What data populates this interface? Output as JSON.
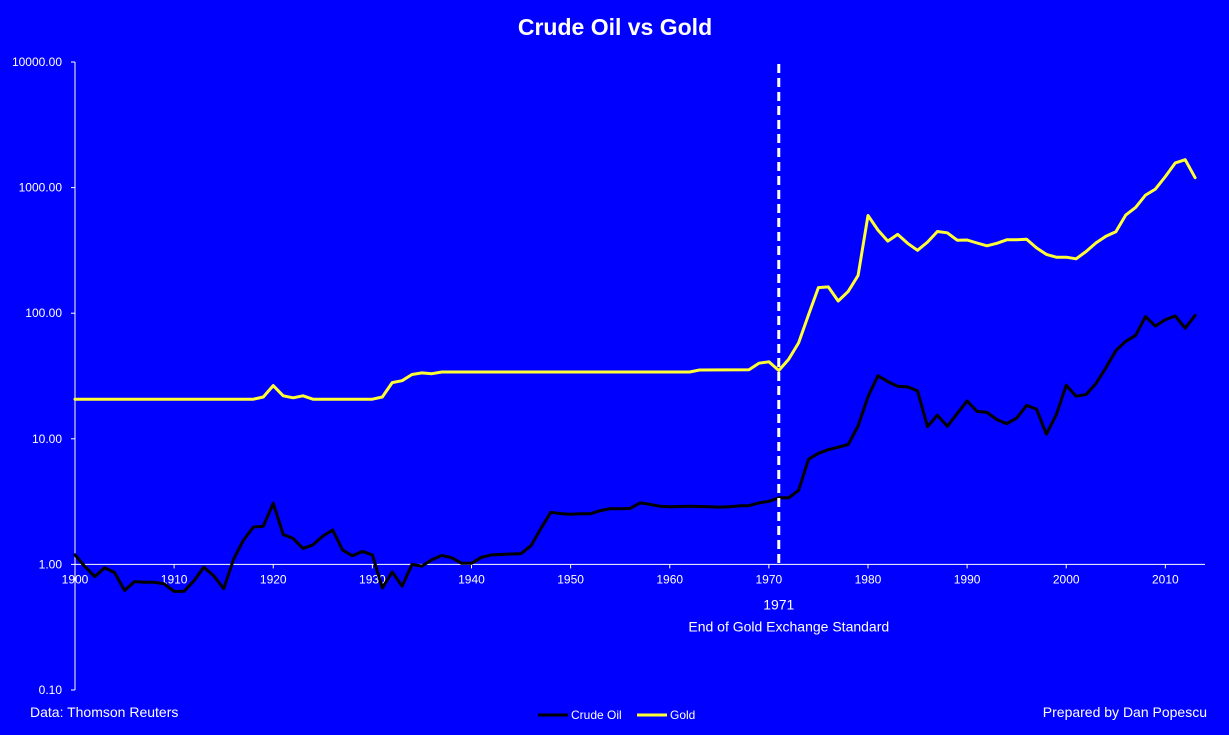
{
  "chart_data": {
    "type": "line",
    "title": "Crude Oil vs Gold",
    "xlabel": "",
    "ylabel": "",
    "y_scale": "log",
    "ylim": [
      0.1,
      10000
    ],
    "xlim": [
      1900,
      2014
    ],
    "y_ticks": [
      "0.10",
      "1.00",
      "10.00",
      "100.00",
      "1000.00",
      "10000.00"
    ],
    "x_ticks": [
      "1900",
      "1910",
      "1920",
      "1930",
      "1940",
      "1950",
      "1960",
      "1970",
      "1980",
      "1990",
      "2000",
      "2010"
    ],
    "grid": false,
    "legend_position": "bottom",
    "annotation": {
      "year": 1971,
      "year_label": "1971",
      "text": "End of Gold Exchange Standard"
    },
    "series": [
      {
        "name": "Crude Oil",
        "color": "#000000",
        "points": [
          [
            1900,
            1.19
          ],
          [
            1901,
            0.96
          ],
          [
            1902,
            0.8
          ],
          [
            1903,
            0.94
          ],
          [
            1904,
            0.86
          ],
          [
            1905,
            0.62
          ],
          [
            1906,
            0.73
          ],
          [
            1907,
            0.72
          ],
          [
            1908,
            0.72
          ],
          [
            1909,
            0.7
          ],
          [
            1910,
            0.61
          ],
          [
            1911,
            0.61
          ],
          [
            1912,
            0.74
          ],
          [
            1913,
            0.95
          ],
          [
            1914,
            0.81
          ],
          [
            1915,
            0.64
          ],
          [
            1916,
            1.1
          ],
          [
            1917,
            1.56
          ],
          [
            1918,
            1.98
          ],
          [
            1919,
            2.01
          ],
          [
            1920,
            3.07
          ],
          [
            1921,
            1.73
          ],
          [
            1922,
            1.61
          ],
          [
            1923,
            1.34
          ],
          [
            1924,
            1.43
          ],
          [
            1925,
            1.68
          ],
          [
            1926,
            1.88
          ],
          [
            1927,
            1.3
          ],
          [
            1928,
            1.17
          ],
          [
            1929,
            1.27
          ],
          [
            1930,
            1.19
          ],
          [
            1931,
            0.65
          ],
          [
            1932,
            0.87
          ],
          [
            1933,
            0.67
          ],
          [
            1934,
            1.0
          ],
          [
            1935,
            0.97
          ],
          [
            1936,
            1.09
          ],
          [
            1937,
            1.18
          ],
          [
            1938,
            1.13
          ],
          [
            1939,
            1.02
          ],
          [
            1940,
            1.02
          ],
          [
            1941,
            1.14
          ],
          [
            1942,
            1.19
          ],
          [
            1943,
            1.2
          ],
          [
            1944,
            1.21
          ],
          [
            1945,
            1.22
          ],
          [
            1946,
            1.41
          ],
          [
            1947,
            1.93
          ],
          [
            1948,
            2.6
          ],
          [
            1949,
            2.54
          ],
          [
            1950,
            2.51
          ],
          [
            1951,
            2.53
          ],
          [
            1952,
            2.53
          ],
          [
            1953,
            2.68
          ],
          [
            1954,
            2.78
          ],
          [
            1955,
            2.77
          ],
          [
            1956,
            2.79
          ],
          [
            1957,
            3.09
          ],
          [
            1958,
            3.01
          ],
          [
            1959,
            2.9
          ],
          [
            1960,
            2.88
          ],
          [
            1961,
            2.89
          ],
          [
            1962,
            2.9
          ],
          [
            1963,
            2.89
          ],
          [
            1964,
            2.88
          ],
          [
            1965,
            2.86
          ],
          [
            1966,
            2.88
          ],
          [
            1967,
            2.92
          ],
          [
            1968,
            2.94
          ],
          [
            1969,
            3.09
          ],
          [
            1970,
            3.18
          ],
          [
            1971,
            3.39
          ],
          [
            1972,
            3.39
          ],
          [
            1973,
            3.89
          ],
          [
            1974,
            6.87
          ],
          [
            1975,
            7.67
          ],
          [
            1976,
            8.19
          ],
          [
            1977,
            8.57
          ],
          [
            1978,
            9.0
          ],
          [
            1979,
            12.64
          ],
          [
            1980,
            21.59
          ],
          [
            1981,
            31.77
          ],
          [
            1982,
            28.52
          ],
          [
            1983,
            26.19
          ],
          [
            1984,
            25.88
          ],
          [
            1985,
            24.09
          ],
          [
            1986,
            12.51
          ],
          [
            1987,
            15.4
          ],
          [
            1988,
            12.58
          ],
          [
            1989,
            15.86
          ],
          [
            1990,
            20.03
          ],
          [
            1991,
            16.54
          ],
          [
            1992,
            16.22
          ],
          [
            1993,
            14.25
          ],
          [
            1994,
            13.19
          ],
          [
            1995,
            14.62
          ],
          [
            1996,
            18.46
          ],
          [
            1997,
            17.23
          ],
          [
            1998,
            10.87
          ],
          [
            1999,
            15.56
          ],
          [
            2000,
            26.72
          ],
          [
            2001,
            21.84
          ],
          [
            2002,
            22.51
          ],
          [
            2003,
            27.56
          ],
          [
            2004,
            36.77
          ],
          [
            2005,
            50.28
          ],
          [
            2006,
            59.69
          ],
          [
            2007,
            66.52
          ],
          [
            2008,
            94.04
          ],
          [
            2009,
            79.0
          ],
          [
            2010,
            89.0
          ],
          [
            2011,
            95.0
          ],
          [
            2012,
            76.0
          ],
          [
            2013,
            96.0
          ]
        ]
      },
      {
        "name": "Gold",
        "color": "#FFFF33",
        "points": [
          [
            1900,
            20.67
          ],
          [
            1910,
            20.67
          ],
          [
            1918,
            20.67
          ],
          [
            1919,
            21.5
          ],
          [
            1920,
            26.5
          ],
          [
            1921,
            22.0
          ],
          [
            1922,
            21.2
          ],
          [
            1923,
            22.0
          ],
          [
            1924,
            20.67
          ],
          [
            1925,
            20.67
          ],
          [
            1929,
            20.67
          ],
          [
            1930,
            20.67
          ],
          [
            1931,
            21.5
          ],
          [
            1932,
            28.0
          ],
          [
            1933,
            29.0
          ],
          [
            1934,
            32.5
          ],
          [
            1935,
            33.5
          ],
          [
            1936,
            33.0
          ],
          [
            1937,
            34.0
          ],
          [
            1940,
            34.0
          ],
          [
            1950,
            34.0
          ],
          [
            1960,
            34.0
          ],
          [
            1962,
            34.0
          ],
          [
            1963,
            35.3
          ],
          [
            1968,
            35.5
          ],
          [
            1969,
            40.0
          ],
          [
            1970,
            41.0
          ],
          [
            1971,
            35.0
          ],
          [
            1972,
            43.0
          ],
          [
            1973,
            58.0
          ],
          [
            1974,
            97.0
          ],
          [
            1975,
            160.0
          ],
          [
            1976,
            162.0
          ],
          [
            1977,
            125.0
          ],
          [
            1978,
            149.0
          ],
          [
            1979,
            200.0
          ],
          [
            1980,
            600.0
          ],
          [
            1981,
            460.0
          ],
          [
            1982,
            375.0
          ],
          [
            1983,
            424.0
          ],
          [
            1984,
            360.0
          ],
          [
            1985,
            317.0
          ],
          [
            1986,
            368.0
          ],
          [
            1987,
            447.0
          ],
          [
            1988,
            437.0
          ],
          [
            1989,
            381.0
          ],
          [
            1990,
            383.0
          ],
          [
            1991,
            362.0
          ],
          [
            1992,
            344.0
          ],
          [
            1993,
            360.0
          ],
          [
            1994,
            384.0
          ],
          [
            1995,
            384.0
          ],
          [
            1996,
            388.0
          ],
          [
            1997,
            331.0
          ],
          [
            1998,
            294.0
          ],
          [
            1999,
            279.0
          ],
          [
            2000,
            279.0
          ],
          [
            2001,
            271.0
          ],
          [
            2002,
            310.0
          ],
          [
            2003,
            363.0
          ],
          [
            2004,
            410.0
          ],
          [
            2005,
            445.0
          ],
          [
            2006,
            604.0
          ],
          [
            2007,
            696.0
          ],
          [
            2008,
            872.0
          ],
          [
            2009,
            972.0
          ],
          [
            2010,
            1225.0
          ],
          [
            2011,
            1572.0
          ],
          [
            2012,
            1669.0
          ],
          [
            2013,
            1200.0
          ]
        ]
      }
    ]
  },
  "footer": {
    "source": "Data: Thomson Reuters",
    "credit": "Prepared by Dan Popescu"
  },
  "colors": {
    "background": "#0000FF",
    "axis": "#FFFFFF",
    "text": "#FFFFFF",
    "oil": "#000000",
    "gold": "#FFFF33",
    "marker_line": "#FFFFFF"
  }
}
